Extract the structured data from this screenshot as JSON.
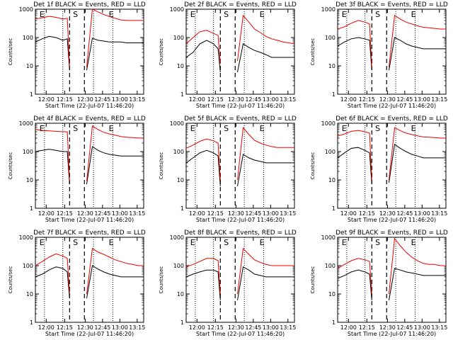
{
  "figure": {
    "x_axis_title": "Start Time (22-Jul-07 11:46:20)",
    "y_axis_title": "Counts/sec",
    "x_tick_labels": [
      "12:00",
      "12:15",
      "12:30",
      "12:45",
      "13:00",
      "13:15"
    ],
    "y_tick_labels": [
      "1",
      "10",
      "100",
      "1000"
    ],
    "markers": [
      "E",
      "S",
      "E"
    ],
    "colors": {
      "events": "#000000",
      "lld": "#ee0000"
    }
  },
  "chart_data": [
    {
      "type": "line",
      "title": "Det 1f BLACK = Events, RED = LLD",
      "xlabel": "Start Time (22-Jul-07 11:46:20)",
      "ylabel": "Counts/sec",
      "xlim": [
        0,
        95
      ],
      "ylim": [
        1,
        1000
      ],
      "yscale": "log",
      "x": [
        0,
        6,
        12,
        18,
        24,
        28,
        30,
        43,
        45,
        50,
        55,
        60,
        65,
        70,
        75,
        80,
        85,
        90,
        95
      ],
      "series": [
        {
          "values": [
            70,
            90,
            110,
            100,
            80,
            90,
            7,
            null,
            7,
            95,
            80,
            75,
            70,
            70,
            70,
            65,
            65,
            65,
            65
          ]
        },
        {
          "values": [
            450,
            500,
            560,
            520,
            450,
            480,
            9,
            null,
            9,
            1000,
            800,
            650,
            550,
            480,
            420,
            400,
            400,
            400,
            400
          ]
        }
      ],
      "vlines_dashed": [
        30,
        43
      ],
      "vlines_dotted": [
        8,
        24,
        51,
        68
      ]
    },
    {
      "type": "line",
      "title": "Det 2f BLACK = Events, RED = LLD",
      "xlabel": "Start Time (22-Jul-07 11:46:20)",
      "ylabel": "Counts/sec",
      "xlim": [
        0,
        95
      ],
      "ylim": [
        1,
        1000
      ],
      "yscale": "log",
      "x": [
        0,
        6,
        12,
        18,
        24,
        28,
        30,
        43,
        45,
        50,
        55,
        60,
        65,
        70,
        75,
        80,
        85,
        90,
        95
      ],
      "series": [
        {
          "values": [
            20,
            30,
            60,
            80,
            60,
            40,
            6,
            null,
            6,
            60,
            45,
            35,
            30,
            25,
            20,
            20,
            20,
            20,
            20
          ]
        },
        {
          "values": [
            60,
            100,
            160,
            180,
            140,
            120,
            12,
            null,
            15,
            600,
            350,
            200,
            150,
            110,
            90,
            80,
            70,
            65,
            60
          ]
        }
      ],
      "vlines_dashed": [
        30,
        43
      ],
      "vlines_dotted": [
        8,
        24,
        51,
        68
      ]
    },
    {
      "type": "line",
      "title": "Det 3f BLACK = Events, RED = LLD",
      "xlabel": "Start Time (22-Jul-07 11:46:20)",
      "ylabel": "Counts/sec",
      "xlim": [
        0,
        95
      ],
      "ylim": [
        1,
        1000
      ],
      "yscale": "log",
      "x": [
        0,
        6,
        12,
        18,
        24,
        28,
        30,
        43,
        45,
        50,
        55,
        60,
        65,
        70,
        75,
        80,
        85,
        90,
        95
      ],
      "series": [
        {
          "values": [
            50,
            70,
            90,
            100,
            90,
            80,
            7,
            null,
            7,
            100,
            80,
            60,
            50,
            45,
            40,
            40,
            40,
            40,
            40
          ]
        },
        {
          "values": [
            200,
            240,
            320,
            400,
            350,
            300,
            9,
            null,
            9,
            600,
            450,
            350,
            300,
            260,
            230,
            220,
            210,
            200,
            200
          ]
        }
      ],
      "vlines_dashed": [
        30,
        43
      ],
      "vlines_dotted": [
        8,
        24,
        51,
        68
      ]
    },
    {
      "type": "line",
      "title": "Det 4f BLACK = Events, RED = LLD",
      "xlabel": "Start Time (22-Jul-07 11:46:20)",
      "ylabel": "Counts/sec",
      "xlim": [
        0,
        95
      ],
      "ylim": [
        1,
        1000
      ],
      "yscale": "log",
      "x": [
        0,
        6,
        12,
        18,
        24,
        28,
        30,
        43,
        45,
        50,
        55,
        60,
        65,
        70,
        75,
        80,
        85,
        90,
        95
      ],
      "series": [
        {
          "values": [
            100,
            110,
            120,
            110,
            100,
            100,
            7,
            null,
            7,
            150,
            110,
            90,
            80,
            75,
            70,
            70,
            70,
            70,
            70
          ]
        },
        {
          "values": [
            600,
            560,
            540,
            520,
            500,
            500,
            9,
            null,
            9,
            800,
            600,
            480,
            420,
            380,
            340,
            320,
            310,
            300,
            300
          ]
        }
      ],
      "vlines_dashed": [
        30,
        43
      ],
      "vlines_dotted": [
        8,
        24,
        51,
        68
      ]
    },
    {
      "type": "line",
      "title": "Det 5f BLACK = Events, RED = LLD",
      "xlabel": "Start Time (22-Jul-07 11:46:20)",
      "ylabel": "Counts/sec",
      "xlim": [
        0,
        95
      ],
      "ylim": [
        1,
        1000
      ],
      "yscale": "log",
      "x": [
        0,
        6,
        12,
        18,
        24,
        28,
        30,
        43,
        45,
        50,
        55,
        60,
        65,
        70,
        75,
        80,
        85,
        90,
        95
      ],
      "series": [
        {
          "values": [
            40,
            60,
            90,
            110,
            90,
            70,
            6,
            null,
            6,
            80,
            60,
            50,
            45,
            40,
            40,
            40,
            40,
            40,
            40
          ]
        },
        {
          "values": [
            130,
            170,
            230,
            280,
            240,
            200,
            10,
            null,
            10,
            700,
            400,
            250,
            200,
            170,
            150,
            140,
            140,
            140,
            140
          ]
        }
      ],
      "vlines_dashed": [
        30,
        43
      ],
      "vlines_dotted": [
        8,
        24,
        51,
        68
      ]
    },
    {
      "type": "line",
      "title": "Det 6f BLACK = Events, RED = LLD",
      "xlabel": "Start Time (22-Jul-07 11:46:20)",
      "ylabel": "Counts/sec",
      "xlim": [
        0,
        95
      ],
      "ylim": [
        1,
        1000
      ],
      "yscale": "log",
      "x": [
        0,
        6,
        12,
        18,
        24,
        28,
        30,
        43,
        45,
        50,
        55,
        60,
        65,
        70,
        75,
        80,
        85,
        90,
        95
      ],
      "series": [
        {
          "values": [
            60,
            90,
            130,
            140,
            110,
            90,
            7,
            null,
            8,
            180,
            130,
            100,
            80,
            70,
            60,
            60,
            60,
            60,
            60
          ]
        },
        {
          "values": [
            350,
            420,
            520,
            560,
            500,
            450,
            10,
            null,
            10,
            700,
            550,
            450,
            400,
            360,
            330,
            320,
            310,
            300,
            300
          ]
        }
      ],
      "vlines_dashed": [
        30,
        43
      ],
      "vlines_dotted": [
        8,
        24,
        51,
        68
      ]
    },
    {
      "type": "line",
      "title": "Det 7f BLACK = Events, RED = LLD",
      "xlabel": "Start Time (22-Jul-07 11:46:20)",
      "ylabel": "Counts/sec",
      "xlim": [
        0,
        95
      ],
      "ylim": [
        1,
        1000
      ],
      "yscale": "log",
      "x": [
        0,
        6,
        12,
        18,
        24,
        28,
        30,
        43,
        45,
        50,
        55,
        60,
        65,
        70,
        75,
        80,
        85,
        90,
        95
      ],
      "series": [
        {
          "values": [
            40,
            50,
            70,
            90,
            80,
            60,
            7,
            null,
            7,
            100,
            75,
            60,
            50,
            45,
            40,
            40,
            40,
            40,
            40
          ]
        },
        {
          "values": [
            100,
            140,
            200,
            260,
            220,
            180,
            10,
            null,
            10,
            400,
            300,
            250,
            200,
            160,
            140,
            120,
            110,
            100,
            100
          ]
        }
      ],
      "vlines_dashed": [
        30,
        43
      ],
      "vlines_dotted": [
        8,
        24,
        51,
        68
      ]
    },
    {
      "type": "line",
      "title": "Det 8f BLACK = Events, RED = LLD",
      "xlabel": "Start Time (22-Jul-07 11:46:20)",
      "ylabel": "Counts/sec",
      "xlim": [
        0,
        95
      ],
      "ylim": [
        1,
        1000
      ],
      "yscale": "log",
      "x": [
        0,
        6,
        12,
        18,
        24,
        28,
        30,
        43,
        45,
        50,
        55,
        60,
        65,
        70,
        75,
        80,
        85,
        90,
        95
      ],
      "series": [
        {
          "values": [
            40,
            50,
            60,
            70,
            70,
            60,
            6,
            null,
            6,
            90,
            70,
            50,
            45,
            40,
            40,
            40,
            40,
            40,
            40
          ]
        },
        {
          "values": [
            90,
            110,
            140,
            180,
            180,
            150,
            10,
            null,
            10,
            400,
            250,
            160,
            130,
            110,
            100,
            100,
            100,
            100,
            100
          ]
        }
      ],
      "vlines_dashed": [
        30,
        43
      ],
      "vlines_dotted": [
        8,
        24,
        51,
        68
      ]
    },
    {
      "type": "line",
      "title": "Det 9f BLACK = Events, RED = LLD",
      "xlabel": "Start Time (22-Jul-07 11:46:20)",
      "ylabel": "Counts/sec",
      "xlim": [
        0,
        95
      ],
      "ylim": [
        1,
        1000
      ],
      "yscale": "log",
      "x": [
        0,
        6,
        12,
        18,
        24,
        28,
        30,
        43,
        45,
        50,
        55,
        60,
        65,
        70,
        75,
        80,
        85,
        90,
        95
      ],
      "series": [
        {
          "values": [
            35,
            45,
            60,
            70,
            60,
            50,
            6,
            null,
            6,
            80,
            70,
            60,
            55,
            50,
            45,
            45,
            45,
            45,
            45
          ]
        },
        {
          "values": [
            80,
            110,
            150,
            180,
            160,
            140,
            10,
            null,
            10,
            900,
            500,
            300,
            200,
            150,
            120,
            110,
            110,
            100,
            100
          ]
        }
      ],
      "vlines_dashed": [
        30,
        43
      ],
      "vlines_dotted": [
        8,
        24,
        51,
        68
      ]
    }
  ]
}
